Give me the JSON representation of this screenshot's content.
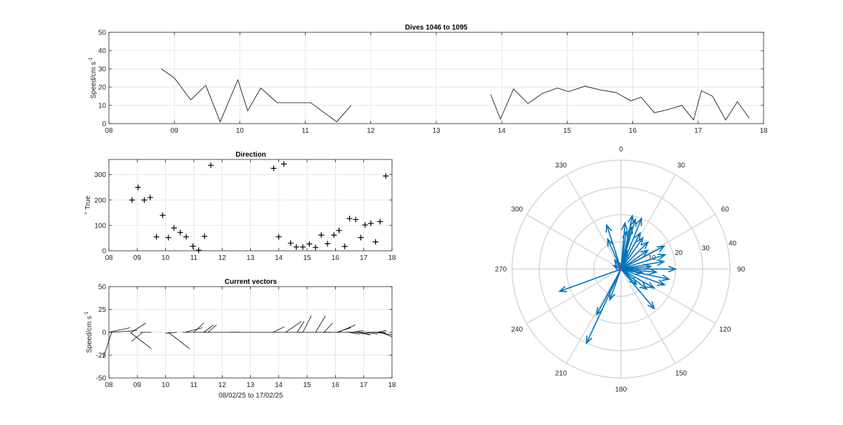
{
  "chart_data": [
    {
      "type": "line",
      "title": "Dives 1046 to 1095",
      "ylabel": "Speed/cm s",
      "ylabel_sup": "-1",
      "xlim": [
        8,
        18
      ],
      "ylim": [
        0,
        50
      ],
      "xticks": [
        8,
        9,
        10,
        11,
        12,
        13,
        14,
        15,
        16,
        17,
        18
      ],
      "xticklabels": [
        "08",
        "09",
        "10",
        "11",
        "12",
        "13",
        "14",
        "15",
        "16",
        "17",
        "18"
      ],
      "yticks": [
        0,
        10,
        20,
        30,
        40,
        50
      ],
      "grid": true,
      "line_color": "#000000",
      "segments": [
        {
          "x": [
            8.8,
            9.0,
            9.25,
            9.48,
            9.7,
            9.97,
            10.12,
            10.32,
            10.57,
            10.8,
            11.08,
            11.48,
            11.7
          ],
          "y": [
            30,
            25,
            13,
            21,
            1,
            24,
            7,
            19.5,
            11.5,
            11.5,
            11.5,
            1,
            10
          ]
        },
        {
          "x": [
            13.83,
            13.98,
            14.18,
            14.4,
            14.62,
            14.85,
            15.02,
            15.27,
            15.5,
            15.75,
            15.97,
            16.13,
            16.33,
            16.52,
            16.75,
            16.93,
            17.05,
            17.22,
            17.42,
            17.6,
            17.78
          ],
          "y": [
            16,
            2.5,
            19,
            11,
            16.5,
            19.5,
            17.5,
            20.5,
            18.5,
            17,
            12.5,
            14.5,
            6,
            7.5,
            10,
            2,
            18,
            15,
            2,
            12,
            3
          ]
        }
      ]
    },
    {
      "type": "scatter",
      "title": "Direction",
      "ylabel": "° True",
      "xlim": [
        8,
        18
      ],
      "ylim": [
        0,
        360
      ],
      "xticks": [
        8,
        9,
        10,
        11,
        12,
        13,
        14,
        15,
        16,
        17,
        18
      ],
      "xticklabels": [
        "08",
        "09",
        "10",
        "11",
        "12",
        "13",
        "14",
        "15",
        "16",
        "17",
        "18"
      ],
      "yticks": [
        0,
        100,
        200,
        300
      ],
      "grid": true,
      "marker": "+",
      "points": [
        [
          8.82,
          200
        ],
        [
          9.03,
          250
        ],
        [
          9.25,
          200
        ],
        [
          9.46,
          210
        ],
        [
          9.68,
          55
        ],
        [
          9.9,
          140
        ],
        [
          10.1,
          52
        ],
        [
          10.3,
          90
        ],
        [
          10.52,
          72
        ],
        [
          10.73,
          55
        ],
        [
          10.97,
          18
        ],
        [
          11.17,
          2
        ],
        [
          11.38,
          57
        ],
        [
          11.6,
          337
        ],
        [
          13.82,
          325
        ],
        [
          14.0,
          55
        ],
        [
          14.18,
          342
        ],
        [
          14.42,
          30
        ],
        [
          14.62,
          15
        ],
        [
          14.85,
          15
        ],
        [
          15.08,
          27
        ],
        [
          15.3,
          13
        ],
        [
          15.5,
          62
        ],
        [
          15.72,
          28
        ],
        [
          15.95,
          62
        ],
        [
          16.13,
          80
        ],
        [
          16.33,
          17
        ],
        [
          16.5,
          127
        ],
        [
          16.72,
          123
        ],
        [
          16.9,
          52
        ],
        [
          17.05,
          102
        ],
        [
          17.25,
          108
        ],
        [
          17.42,
          35
        ],
        [
          17.58,
          115
        ],
        [
          17.78,
          295
        ]
      ]
    },
    {
      "type": "line",
      "title": "Current vectors",
      "ylabel": "Speed/cm s",
      "ylabel_sup": "-1",
      "xlabel": "08/02/25 to 17/02/25",
      "xlim": [
        8,
        18
      ],
      "ylim": [
        -50,
        50
      ],
      "xticks": [
        8,
        9,
        10,
        11,
        12,
        13,
        14,
        15,
        16,
        17,
        18
      ],
      "xticklabels": [
        "08",
        "09",
        "10",
        "11",
        "12",
        "13",
        "14",
        "15",
        "16",
        "17",
        "18"
      ],
      "yticks": [
        -50,
        -25,
        0,
        25,
        50
      ],
      "grid": true,
      "stick_style": "feather",
      "line_color": "#000000",
      "baseline": [
        10.6,
        17.8
      ],
      "sticks": [
        {
          "x": 8.0,
          "dx": 0.75,
          "dy": 5
        },
        {
          "x": 8.1,
          "dx": 0.9,
          "dy": 2
        },
        {
          "x": 8.1,
          "dx": -0.3,
          "dy": -28
        },
        {
          "x": 8.8,
          "dx": 0.5,
          "dy": 10
        },
        {
          "x": 8.75,
          "dx": 0.75,
          "dy": -18
        },
        {
          "x": 9.1,
          "dx": 0.4,
          "dy": 0
        },
        {
          "x": 9.2,
          "dx": -0.4,
          "dy": -10
        },
        {
          "x": 10.1,
          "dx": 0.75,
          "dy": -18
        },
        {
          "x": 10.4,
          "dx": -0.4,
          "dy": -1
        },
        {
          "x": 10.7,
          "dx": 0.6,
          "dy": 5
        },
        {
          "x": 11.0,
          "dx": 0.35,
          "dy": 10
        },
        {
          "x": 11.3,
          "dx": 0.3,
          "dy": 0
        },
        {
          "x": 11.35,
          "dx": 0.35,
          "dy": 8
        },
        {
          "x": 11.5,
          "dx": 0.3,
          "dy": 8
        },
        {
          "x": 12.3,
          "dx": 0.3,
          "dy": 0
        },
        {
          "x": 13.8,
          "dx": 0.4,
          "dy": 6
        },
        {
          "x": 14.25,
          "dx": 0.55,
          "dy": 12
        },
        {
          "x": 14.65,
          "dx": 0.2,
          "dy": 0
        },
        {
          "x": 14.65,
          "dx": 0.25,
          "dy": 12
        },
        {
          "x": 14.85,
          "dx": 0.3,
          "dy": 18
        },
        {
          "x": 15.3,
          "dx": 0.35,
          "dy": 18
        },
        {
          "x": 15.55,
          "dx": 0.3,
          "dy": 0
        },
        {
          "x": 15.6,
          "dx": 0.3,
          "dy": 10
        },
        {
          "x": 16.05,
          "dx": 0.5,
          "dy": 5
        },
        {
          "x": 16.1,
          "dx": 0.6,
          "dy": 8
        },
        {
          "x": 16.35,
          "dx": 0.25,
          "dy": 0
        },
        {
          "x": 16.45,
          "dx": 0.4,
          "dy": -2
        },
        {
          "x": 16.6,
          "dx": 0.4,
          "dy": 2
        },
        {
          "x": 16.8,
          "dx": 0.4,
          "dy": -2
        },
        {
          "x": 16.75,
          "dx": 0.5,
          "dy": -3
        },
        {
          "x": 17.05,
          "dx": 0.45,
          "dy": -2
        },
        {
          "x": 17.25,
          "dx": 0.5,
          "dy": -1
        },
        {
          "x": 17.5,
          "dx": 0.3,
          "dy": 2
        },
        {
          "x": 17.55,
          "dx": 0.45,
          "dy": -3
        },
        {
          "x": 17.6,
          "dx": 0.4,
          "dy": -5
        }
      ]
    },
    {
      "type": "scatter",
      "subtype": "polar-compass",
      "rlim": [
        0,
        40
      ],
      "rticks": [
        10,
        20,
        30,
        40
      ],
      "thetaticks": [
        0,
        30,
        60,
        90,
        120,
        150,
        180,
        210,
        240,
        270,
        300,
        330
      ],
      "theta_zero": "top",
      "theta_direction": "clockwise",
      "grid": true,
      "arrow_color": "#0072bd",
      "center_marker_color": "#d62728",
      "vectors": [
        {
          "dir": 90,
          "speed": 20
        },
        {
          "dir": 102,
          "speed": 18
        },
        {
          "dir": 110,
          "speed": 17
        },
        {
          "dir": 80,
          "speed": 16
        },
        {
          "dir": 72,
          "speed": 17
        },
        {
          "dir": 62,
          "speed": 18
        },
        {
          "dir": 55,
          "speed": 12
        },
        {
          "dir": 45,
          "speed": 14
        },
        {
          "dir": 35,
          "speed": 14
        },
        {
          "dir": 28,
          "speed": 15
        },
        {
          "dir": 22,
          "speed": 20
        },
        {
          "dir": 16,
          "speed": 19
        },
        {
          "dir": 12,
          "speed": 20
        },
        {
          "dir": 8,
          "speed": 14
        },
        {
          "dir": 5,
          "speed": 17
        },
        {
          "dir": 18,
          "speed": 7
        },
        {
          "dir": 14,
          "speed": 16
        },
        {
          "dir": 342,
          "speed": 17
        },
        {
          "dir": 336,
          "speed": 12
        },
        {
          "dir": 325,
          "speed": 4
        },
        {
          "dir": 295,
          "speed": 3
        },
        {
          "dir": 250,
          "speed": 24
        },
        {
          "dir": 205,
          "speed": 30
        },
        {
          "dir": 208,
          "speed": 19
        },
        {
          "dir": 200,
          "speed": 12
        },
        {
          "dir": 140,
          "speed": 19
        },
        {
          "dir": 128,
          "speed": 12
        },
        {
          "dir": 135,
          "speed": 8
        },
        {
          "dir": 85,
          "speed": 11
        },
        {
          "dir": 95,
          "speed": 13
        },
        {
          "dir": 120,
          "speed": 14
        },
        {
          "dir": 100,
          "speed": 8
        }
      ]
    }
  ]
}
